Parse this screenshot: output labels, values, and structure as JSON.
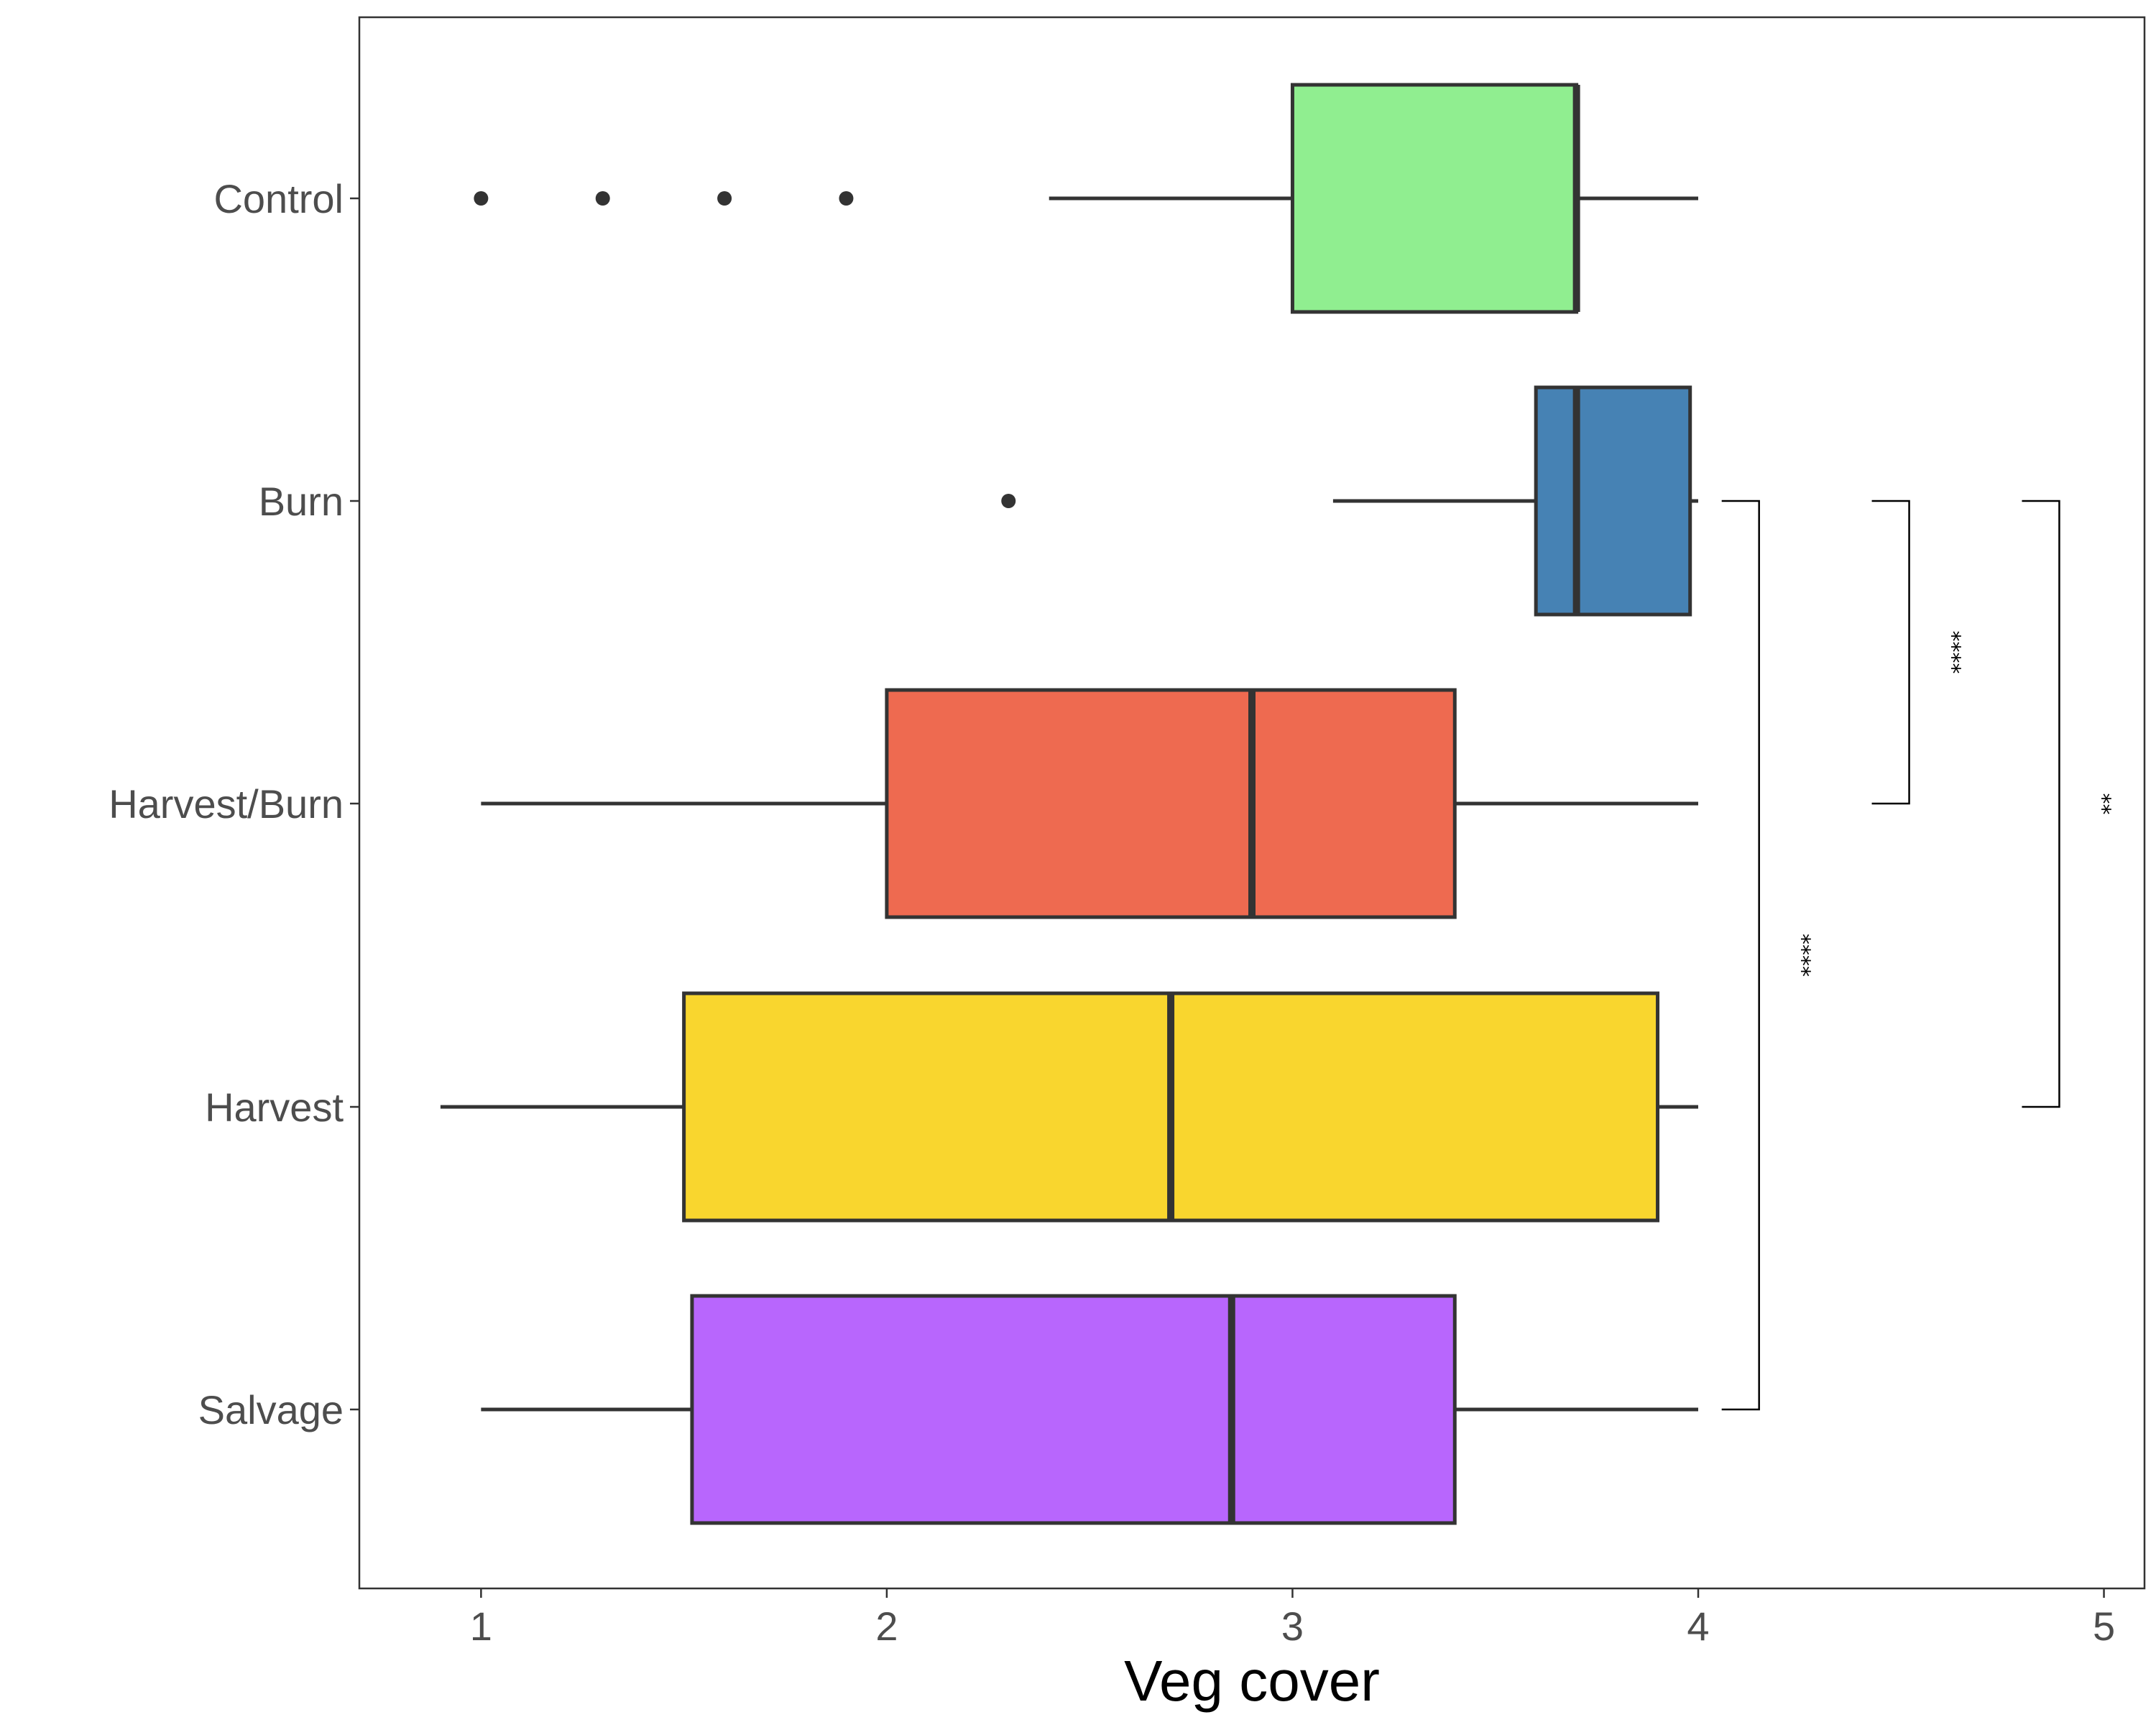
{
  "chart_data": {
    "type": "boxplot",
    "orientation": "horizontal",
    "xlabel": "Veg cover",
    "ylabel": "",
    "xlim": [
      0.7,
      5.1
    ],
    "x_ticks": [
      "1",
      "2",
      "3",
      "4",
      "5"
    ],
    "categories": [
      "Control",
      "Burn",
      "Harvest/Burn",
      "Harvest",
      "Salvage"
    ],
    "boxes": [
      {
        "category": "Control",
        "whisker_low": 2.4,
        "q1": 3.0,
        "median": 3.7,
        "q3": 3.7,
        "whisker_high": 4.0,
        "outliers": [
          1.0,
          1.3,
          1.6,
          1.9
        ],
        "color": "#90EE90"
      },
      {
        "category": "Burn",
        "whisker_low": 3.1,
        "q1": 3.6,
        "median": 3.7,
        "q3": 3.98,
        "whisker_high": 4.0,
        "outliers": [
          2.3
        ],
        "color": "#4682B4"
      },
      {
        "category": "Harvest/Burn",
        "whisker_low": 1.0,
        "q1": 2.0,
        "median": 2.9,
        "q3": 3.4,
        "whisker_high": 4.0,
        "outliers": [],
        "color": "#EE6A50"
      },
      {
        "category": "Harvest",
        "whisker_low": 0.9,
        "q1": 1.5,
        "median": 2.7,
        "q3": 3.9,
        "whisker_high": 4.0,
        "outliers": [],
        "color": "#F9D62E"
      },
      {
        "category": "Salvage",
        "whisker_low": 1.0,
        "q1": 1.52,
        "median": 2.85,
        "q3": 3.4,
        "whisker_high": 4.0,
        "outliers": [],
        "color": "#B866FD"
      }
    ],
    "significance": [
      {
        "from": "Burn",
        "to": "Salvage",
        "x": 4.15,
        "label": "****"
      },
      {
        "from": "Burn",
        "to": "Harvest/Burn",
        "x": 4.52,
        "label": "****"
      },
      {
        "from": "Burn",
        "to": "Harvest",
        "x": 4.89,
        "label": "**"
      }
    ],
    "grid": false,
    "legend": "none"
  }
}
